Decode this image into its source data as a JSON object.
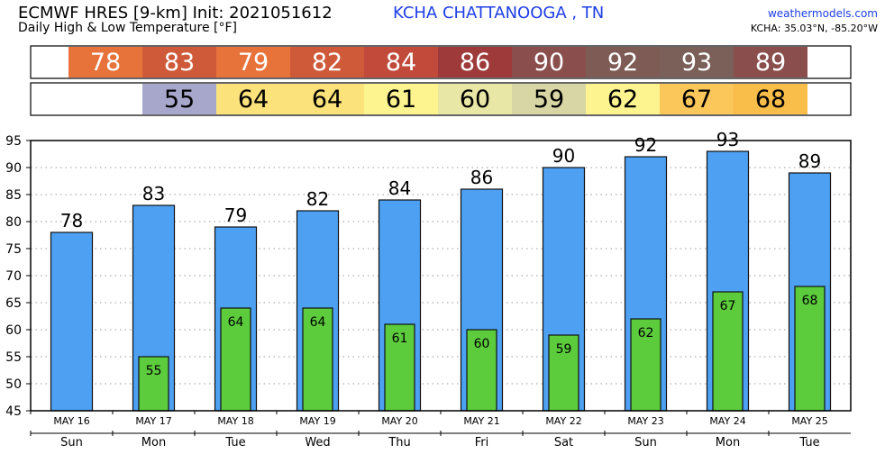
{
  "header": {
    "title": "ECMWF HRES [9-km] Init: 2021051612",
    "subtitle": "Daily High & Low Temperature [°F]",
    "station": "KCHA CHATTANOOGA    , TN",
    "site": "weathermodels.com",
    "coords": "KCHA: 35.03°N, -85.20°W"
  },
  "colors": {
    "high_bar": "#4da0f2",
    "low_bar": "#5ccc3c",
    "bar_outline": "#111111"
  },
  "chart_data": {
    "type": "bar",
    "categories": [
      "MAY 16",
      "MAY 17",
      "MAY 18",
      "MAY 19",
      "MAY 20",
      "MAY 21",
      "MAY 22",
      "MAY 23",
      "MAY 24",
      "MAY 25"
    ],
    "weekdays": [
      "Sun",
      "Mon",
      "Tue",
      "Wed",
      "Thu",
      "Fri",
      "Sat",
      "Sun",
      "Mon",
      "Tue"
    ],
    "series": [
      {
        "key": "high",
        "values": [
          78,
          83,
          79,
          82,
          84,
          86,
          90,
          92,
          93,
          89
        ]
      },
      {
        "key": "low",
        "values": [
          null,
          55,
          64,
          64,
          61,
          60,
          59,
          62,
          67,
          68
        ]
      }
    ],
    "high_display": [
      78,
      83,
      79,
      82,
      84,
      86,
      90,
      92,
      93,
      89
    ],
    "low_display": [
      null,
      55,
      64,
      64,
      61,
      60,
      59,
      62,
      67,
      68
    ],
    "high_strip_colors": [
      "#e8733a",
      "#cf5a3a",
      "#e8733a",
      "#cf5a3a",
      "#c24a3a",
      "#9e3a3a",
      "#8a4f4c",
      "#7e5b55",
      "#7a6058",
      "#8a4f4c"
    ],
    "low_strip_colors": [
      null,
      "#a7a7cc",
      "#fbe27a",
      "#fbe27a",
      "#fdf490",
      "#e9e7a5",
      "#d8d6a4",
      "#fdf490",
      "#fbc65a",
      "#f9bd4a"
    ],
    "ylim": [
      45,
      95
    ],
    "yticks": [
      45,
      50,
      55,
      60,
      65,
      70,
      75,
      80,
      85,
      90,
      95
    ],
    "grid": true,
    "xlabel": "",
    "ylabel": ""
  }
}
